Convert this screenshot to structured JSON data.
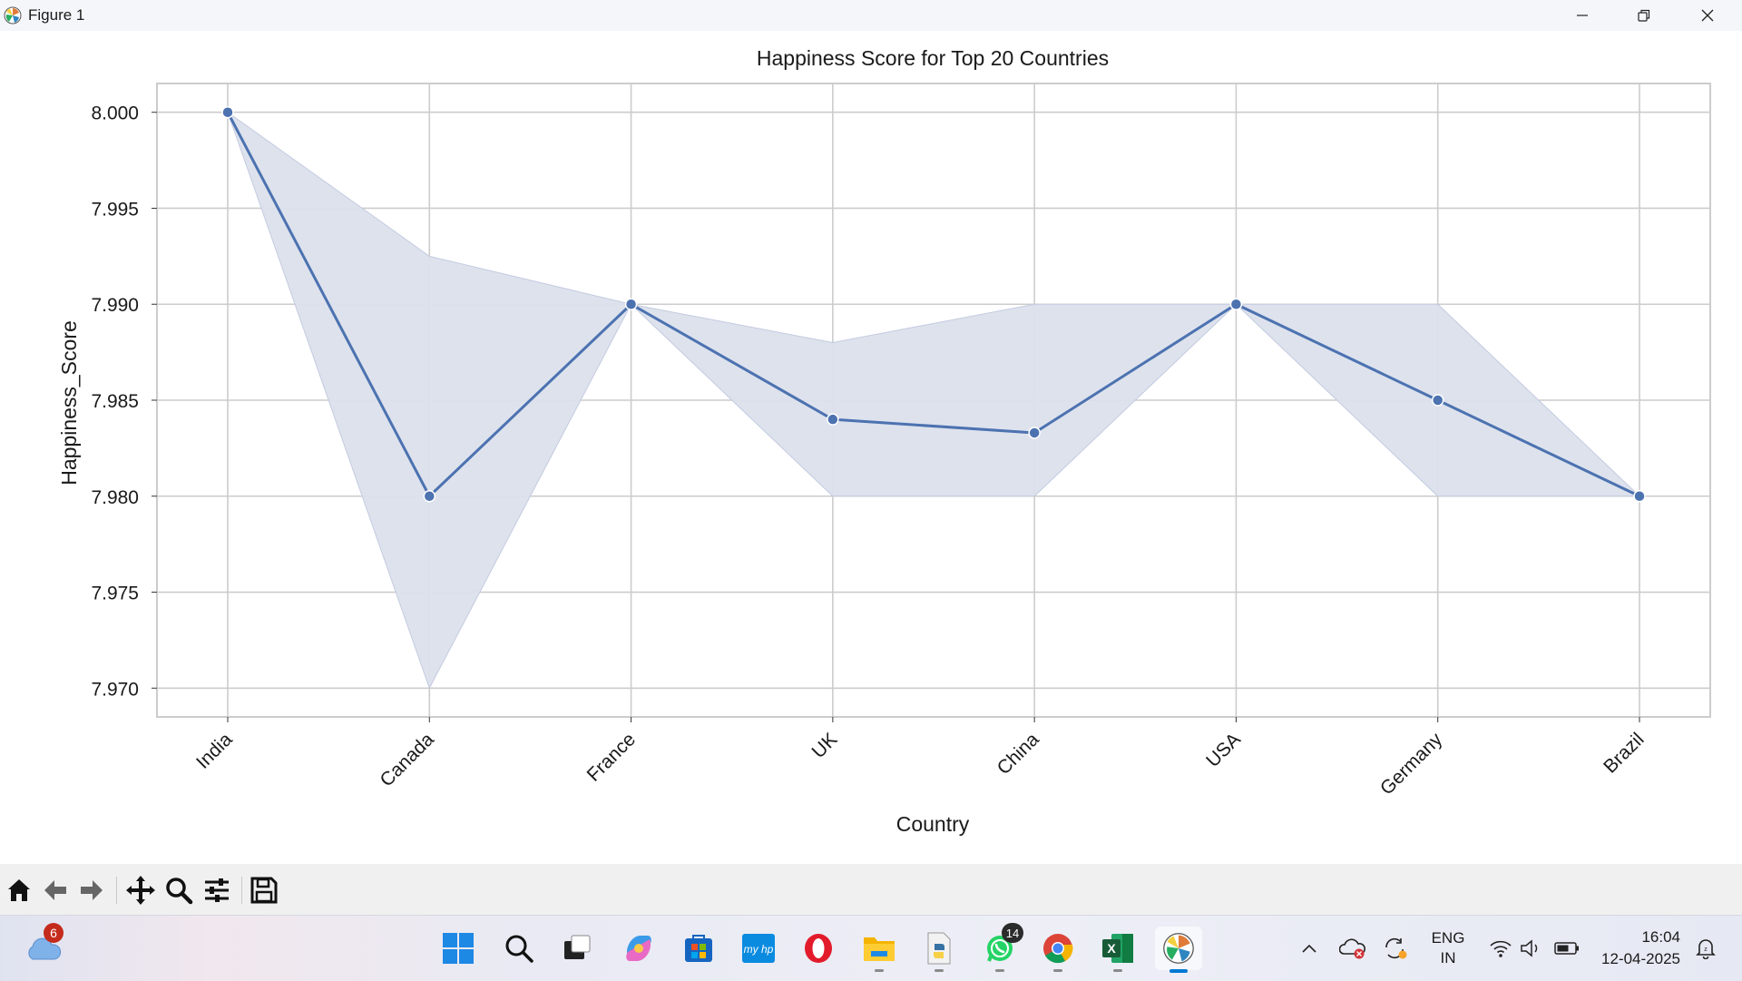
{
  "window": {
    "title": "Figure 1"
  },
  "chart_data": {
    "type": "line",
    "title": "Happiness Score for Top 20 Countries",
    "xlabel": "Country",
    "ylabel": "Happiness_Score",
    "categories": [
      "India",
      "Canada",
      "France",
      "UK",
      "China",
      "USA",
      "Germany",
      "Brazil"
    ],
    "series": [
      {
        "values": [
          8.0,
          7.98,
          7.99,
          7.984,
          7.9833,
          7.99,
          7.985,
          7.98
        ]
      }
    ],
    "ci_lower": [
      8.0,
      7.97,
      7.99,
      7.98,
      7.98,
      7.99,
      7.98,
      7.98
    ],
    "ci_upper": [
      8.0,
      7.9925,
      7.99,
      7.988,
      7.99,
      7.99,
      7.99,
      7.98
    ],
    "yticks": [
      "7.970",
      "7.975",
      "7.980",
      "7.985",
      "7.990",
      "7.995",
      "8.000"
    ],
    "ylim": [
      7.9685,
      8.0015
    ],
    "grid": true,
    "colors": {
      "line": "#4c72b0",
      "band": "#dbe0ec",
      "grid": "#cccccc"
    }
  },
  "toolbar": {
    "buttons": [
      "home-icon",
      "back-arrow-icon",
      "forward-arrow-icon",
      "pan-icon",
      "zoom-icon",
      "configure-subplots-icon",
      "save-icon"
    ]
  },
  "taskbar": {
    "weather_badge": "6",
    "whatsapp_badge": "14",
    "language_line1": "ENG",
    "language_line2": "IN",
    "time": "16:04",
    "date": "12-04-2025"
  }
}
